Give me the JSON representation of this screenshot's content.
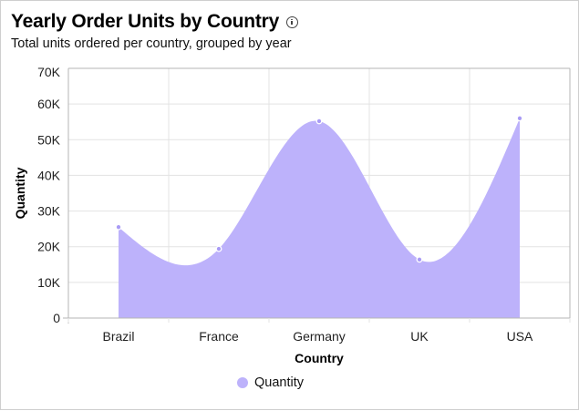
{
  "header": {
    "title": "Yearly Order Units by Country",
    "info_icon": "info-circle-icon",
    "subtitle": "Total units ordered per country, grouped by year"
  },
  "legend": {
    "items": [
      {
        "label": "Quantity",
        "color": "#bdb2fb"
      }
    ]
  },
  "colors": {
    "area_fill": "#bdb2fb",
    "marker": "#a99bf5",
    "grid": "#e3e3e3",
    "axis": "#b5b5b5"
  },
  "chart_data": {
    "type": "area",
    "title": "Yearly Order Units by Country",
    "subtitle": "Total units ordered per country, grouped by year",
    "xlabel": "Country",
    "ylabel": "Quantity",
    "categories": [
      "Brazil",
      "France",
      "Germany",
      "UK",
      "USA"
    ],
    "series": [
      {
        "name": "Quantity",
        "values": [
          25500,
          19400,
          55200,
          16400,
          56000
        ]
      }
    ],
    "ylim": [
      0,
      70000
    ],
    "yticks": [
      0,
      10000,
      20000,
      30000,
      40000,
      50000,
      60000,
      70000
    ],
    "ytick_labels": [
      "0",
      "10K",
      "20K",
      "30K",
      "40K",
      "50K",
      "60K",
      "70K"
    ],
    "grid": true,
    "curve": "smooth spline",
    "legend_position": "bottom"
  }
}
